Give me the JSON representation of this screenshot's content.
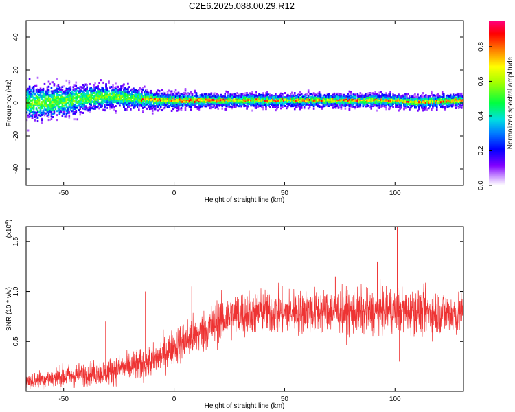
{
  "title": "C2E6.2025.088.00.29.R12",
  "colors": {
    "snr_line": "#ee3333",
    "background": "#ffffff",
    "axis": "#000000"
  },
  "chart_data": [
    {
      "type": "heatmap",
      "panel": "top",
      "xlabel": "Height of straight line (km)",
      "ylabel": "Frequency (Hz)",
      "xlim": [
        -67,
        131
      ],
      "ylim": [
        -50,
        50
      ],
      "xticks": [
        "-50",
        "0",
        "50",
        "100"
      ],
      "xtick_values": [
        -50,
        0,
        50,
        100
      ],
      "yticks": [
        "40",
        "20",
        "0",
        "-20",
        "-40"
      ],
      "ytick_values": [
        40,
        20,
        0,
        -20,
        -40
      ],
      "grid": false,
      "description_of_values": "Spectral power concentrated near 0 Hz; narrow line near 1-2 Hz above ~-15 km, wider scatter (±10-20 Hz) below",
      "ridge": {
        "x": [
          -65,
          -50,
          -40,
          -30,
          -20,
          -10,
          0,
          20,
          40,
          60,
          80,
          100,
          110,
          130
        ],
        "center_hz": [
          0,
          1,
          3,
          4,
          3,
          2,
          1.5,
          1.5,
          1.5,
          1.5,
          1.5,
          1.5,
          0.5,
          1.5
        ],
        "spread_hz": [
          14,
          12,
          10,
          9,
          8,
          7,
          6,
          5,
          5,
          5,
          5,
          5,
          5,
          5
        ]
      },
      "colorbar": {
        "label": "Normalized spectral amplitude",
        "ticks": [
          "0.0",
          "0.2",
          "0.4",
          "0.6",
          "0.8"
        ],
        "tick_values": [
          0.0,
          0.2,
          0.4,
          0.6,
          0.8
        ],
        "range": [
          0,
          0.95
        ]
      }
    },
    {
      "type": "line",
      "panel": "bottom",
      "xlabel": "Height of straight line (km)",
      "ylabel": "SNR (10 * v/v)",
      "y_multiplier": "(x10",
      "y_multiplier_exp": "4",
      "y_multiplier_close": ")",
      "xlim": [
        -67,
        131
      ],
      "ylim": [
        0,
        1.65
      ],
      "xticks": [
        "-50",
        "0",
        "50",
        "100"
      ],
      "xtick_values": [
        -50,
        0,
        50,
        100
      ],
      "yticks": [
        "1.5",
        "1.0",
        "0.5"
      ],
      "ytick_values": [
        1.5,
        1.0,
        0.5
      ],
      "grid": false,
      "trend": {
        "x": [
          -67,
          -50,
          -30,
          -20,
          -10,
          0,
          8,
          10,
          20,
          30,
          50,
          70,
          90,
          100,
          110,
          131
        ],
        "y": [
          0.1,
          0.15,
          0.2,
          0.25,
          0.3,
          0.45,
          0.55,
          0.55,
          0.7,
          0.78,
          0.8,
          0.8,
          0.8,
          0.82,
          0.8,
          0.78
        ],
        "noise": [
          0.07,
          0.1,
          0.12,
          0.13,
          0.15,
          0.16,
          0.2,
          0.18,
          0.2,
          0.2,
          0.2,
          0.2,
          0.2,
          0.2,
          0.2,
          0.2
        ]
      },
      "spikes": [
        {
          "x": -31,
          "y": 0.7
        },
        {
          "x": -13,
          "y": 1.0
        },
        {
          "x": 8,
          "y": 1.05
        },
        {
          "x": 9,
          "y": 0.12
        },
        {
          "x": 73,
          "y": 1.15
        },
        {
          "x": 92,
          "y": 1.3
        },
        {
          "x": 101,
          "y": 1.65
        },
        {
          "x": 102,
          "y": 0.3
        }
      ]
    }
  ]
}
